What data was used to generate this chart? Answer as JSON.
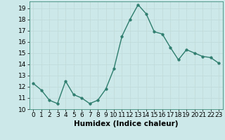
{
  "x": [
    0,
    1,
    2,
    3,
    4,
    5,
    6,
    7,
    8,
    9,
    10,
    11,
    12,
    13,
    14,
    15,
    16,
    17,
    18,
    19,
    20,
    21,
    22,
    23
  ],
  "y": [
    12.3,
    11.7,
    10.8,
    10.5,
    12.5,
    11.3,
    11.0,
    10.5,
    10.8,
    11.8,
    13.6,
    16.5,
    18.0,
    19.3,
    18.5,
    16.9,
    16.7,
    15.5,
    14.4,
    15.3,
    15.0,
    14.7,
    14.6,
    14.1
  ],
  "title": "",
  "xlabel": "Humidex (Indice chaleur)",
  "ylabel": "",
  "xlim": [
    -0.5,
    23.5
  ],
  "ylim": [
    10,
    19.6
  ],
  "yticks": [
    10,
    11,
    12,
    13,
    14,
    15,
    16,
    17,
    18,
    19
  ],
  "xticks": [
    0,
    1,
    2,
    3,
    4,
    5,
    6,
    7,
    8,
    9,
    10,
    11,
    12,
    13,
    14,
    15,
    16,
    17,
    18,
    19,
    20,
    21,
    22,
    23
  ],
  "line_color": "#2e7d6e",
  "marker_color": "#2e7d6e",
  "bg_color": "#cce8e8",
  "grid_color": "#c0d8d8",
  "tick_label_fontsize": 6.5,
  "xlabel_fontsize": 7.5,
  "line_width": 1.0,
  "marker_size": 2.5
}
